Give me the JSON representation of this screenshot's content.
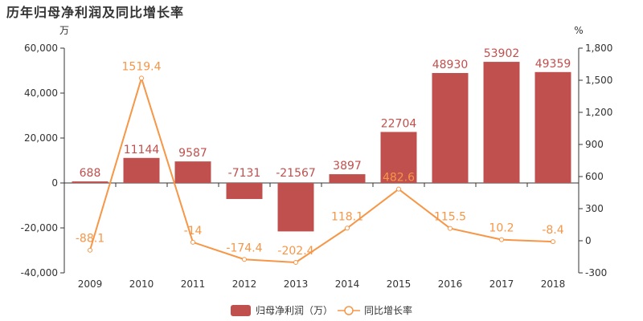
{
  "chart_data": {
    "type": "bar",
    "title": "历年归母净利润及同比增长率",
    "y_left_unit": "万",
    "y_right_unit": "%",
    "categories": [
      "2009",
      "2010",
      "2011",
      "2012",
      "2013",
      "2014",
      "2015",
      "2016",
      "2017",
      "2018"
    ],
    "ylim_left": [
      -40000,
      60000
    ],
    "yticks_left": [
      "-40,000",
      "-20,000",
      "0",
      "20,000",
      "40,000",
      "60,000"
    ],
    "ylim_right": [
      -300,
      1800
    ],
    "yticks_right": [
      "-300",
      "0",
      "300",
      "600",
      "900",
      "1,200",
      "1,500",
      "1,800"
    ],
    "series": [
      {
        "name": "归母净利润（万）",
        "type": "bar",
        "axis": "left",
        "color": "#c0504d",
        "values": [
          688,
          11144,
          9587,
          -7131,
          -21567,
          3897,
          22704,
          48930,
          53902,
          49359
        ],
        "labels": [
          "688",
          "11144",
          "9587",
          "-7131",
          "-21567",
          "3897",
          "22704",
          "48930",
          "53902",
          "49359"
        ]
      },
      {
        "name": "同比增长率",
        "type": "line",
        "axis": "right",
        "color": "#f79646",
        "values": [
          -88.1,
          1519.4,
          -14,
          -174.4,
          -202.4,
          118.1,
          482.6,
          115.5,
          10.2,
          -8.4
        ],
        "labels": [
          "-88.1",
          "1519.4",
          "-14",
          "-174.4",
          "-202.4",
          "118.1",
          "482.6",
          "115.5",
          "10.2",
          "-8.4"
        ]
      }
    ],
    "legend_position": "bottom-center",
    "grid": false
  }
}
